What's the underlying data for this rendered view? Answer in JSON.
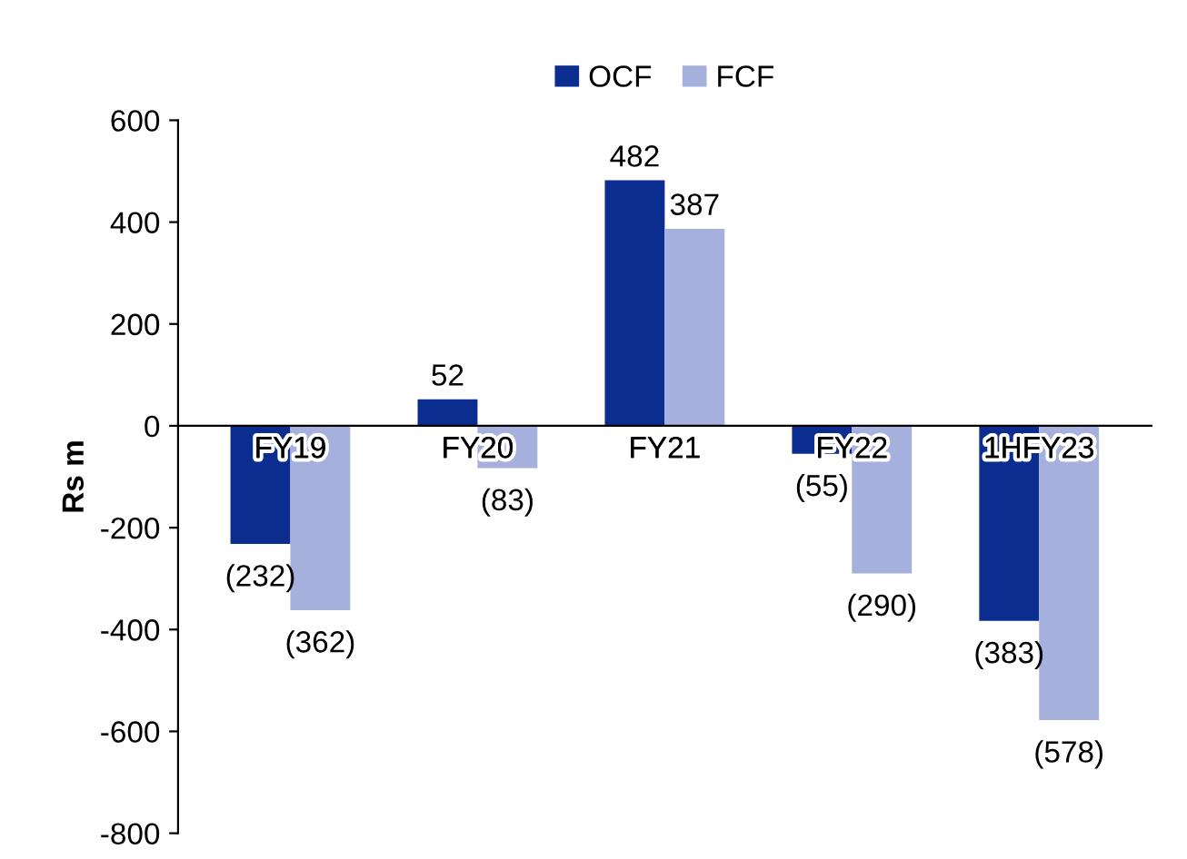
{
  "chart_data": {
    "type": "bar",
    "ylabel": "Rs m",
    "categories": [
      "FY19",
      "FY20",
      "FY21",
      "FY22",
      "1HFY23"
    ],
    "series": [
      {
        "name": "OCF",
        "color": "#0b2d8f",
        "values": [
          -232,
          52,
          482,
          -55,
          -383
        ],
        "value_labels": [
          "(232)",
          "52",
          "482",
          "(55)",
          "(383)"
        ]
      },
      {
        "name": "FCF",
        "color": "#a6b0dc",
        "values": [
          -362,
          -83,
          387,
          -290,
          -578
        ],
        "value_labels": [
          "(362)",
          "(83)",
          "387",
          "(290)",
          "(578)"
        ]
      }
    ],
    "ylim": [
      -800,
      600
    ],
    "yticks": [
      -800,
      -600,
      -400,
      -200,
      0,
      200,
      400,
      600
    ],
    "grid": false,
    "legend": "top"
  }
}
